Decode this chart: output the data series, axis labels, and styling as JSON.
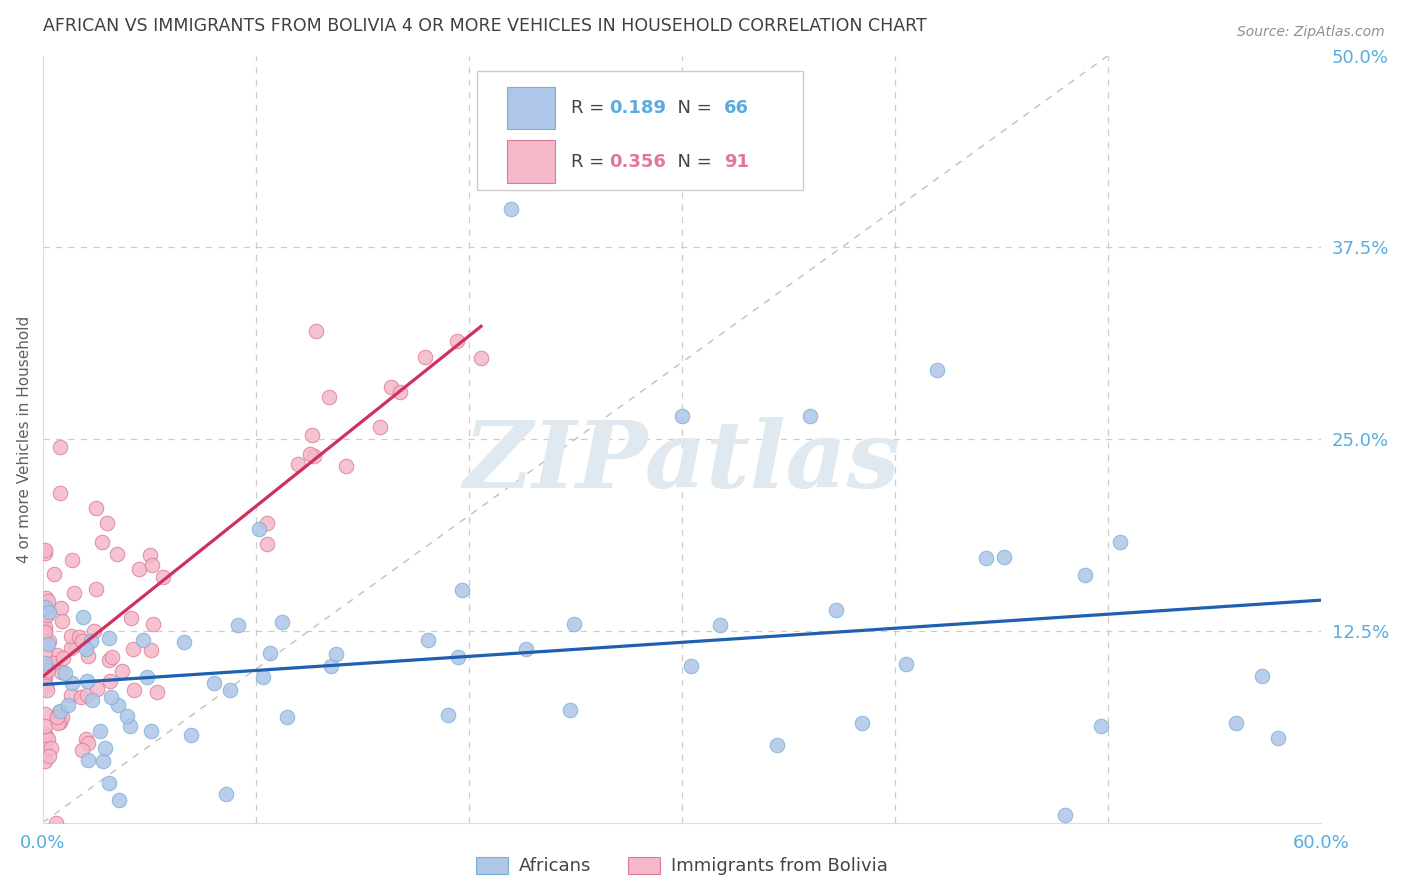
{
  "title": "AFRICAN VS IMMIGRANTS FROM BOLIVIA 4 OR MORE VEHICLES IN HOUSEHOLD CORRELATION CHART",
  "source": "Source: ZipAtlas.com",
  "ylabel": "4 or more Vehicles in Household",
  "xlim": [
    0.0,
    0.6
  ],
  "ylim": [
    0.0,
    0.5
  ],
  "africans_color": "#aec6e8",
  "africans_edge_color": "#7aafd4",
  "bolivia_color": "#f4b8c8",
  "bolivia_edge_color": "#e07898",
  "trend_blue_color": "#2060b0",
  "trend_pink_color": "#d03060",
  "diag_line_color": "#c0c0c0",
  "grid_color": "#cccccc",
  "background_color": "#ffffff",
  "title_color": "#404040",
  "axis_label_color": "#606060",
  "tick_color_x": "#5aabe0",
  "tick_color_y": "#5aabe0",
  "watermark_text": "ZIPatlas",
  "watermark_color": "#e0e8f0",
  "source_color": "#909090",
  "legend_R_color": "#5aabe0",
  "legend_R_pink_color": "#e07898"
}
